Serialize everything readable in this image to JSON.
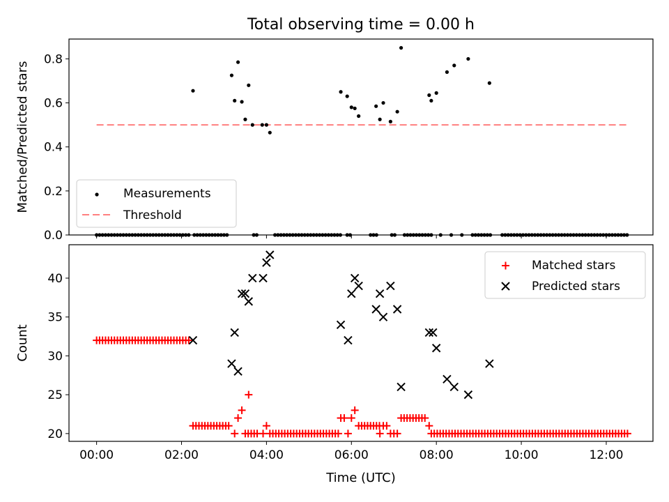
{
  "figure": {
    "title": "Total observing time = 0.00 h",
    "xlabel": "Time (UTC)"
  },
  "chart_data": [
    {
      "type": "scatter",
      "ylabel": "Matched/Predicted stars",
      "xlim": [
        -0.65,
        13.1
      ],
      "ylim": [
        0.0,
        0.89
      ],
      "yticks": [
        0.0,
        0.2,
        0.4,
        0.6,
        0.8
      ],
      "ytick_labels": [
        "0.0",
        "0.2",
        "0.4",
        "0.6",
        "0.8"
      ],
      "xticks": [
        0,
        2,
        4,
        6,
        8,
        10,
        12
      ],
      "legend_position": "lower-left",
      "threshold": {
        "name": "Threshold",
        "value": 0.5,
        "x_range": [
          0.0,
          12.5
        ],
        "color": "#ff7f7f"
      },
      "series": [
        {
          "name": "Measurements",
          "color": "#000000",
          "zero_x_ranges": [
            [
              0.0,
              2.2
            ],
            [
              2.3,
              3.1
            ],
            [
              3.7,
              3.82
            ],
            [
              4.2,
              5.75
            ],
            [
              5.9,
              6.0
            ],
            [
              6.45,
              6.6
            ],
            [
              6.95,
              7.05
            ],
            [
              7.25,
              7.9
            ],
            [
              8.1,
              8.12
            ],
            [
              8.35,
              8.38
            ],
            [
              8.6,
              8.62
            ],
            [
              8.85,
              9.3
            ],
            [
              9.55,
              12.55
            ]
          ],
          "zero_x_step": 0.07,
          "points": [
            [
              2.27,
              0.655
            ],
            [
              3.18,
              0.725
            ],
            [
              3.25,
              0.61
            ],
            [
              3.33,
              0.785
            ],
            [
              3.42,
              0.605
            ],
            [
              3.5,
              0.525
            ],
            [
              3.58,
              0.68
            ],
            [
              3.67,
              0.5
            ],
            [
              3.9,
              0.5
            ],
            [
              4.0,
              0.5
            ],
            [
              4.08,
              0.465
            ],
            [
              5.75,
              0.65
            ],
            [
              5.9,
              0.63
            ],
            [
              6.0,
              0.58
            ],
            [
              6.08,
              0.575
            ],
            [
              6.17,
              0.54
            ],
            [
              6.58,
              0.585
            ],
            [
              6.67,
              0.525
            ],
            [
              6.75,
              0.6
            ],
            [
              6.92,
              0.515
            ],
            [
              7.08,
              0.56
            ],
            [
              7.17,
              0.85
            ],
            [
              7.83,
              0.635
            ],
            [
              7.88,
              0.61
            ],
            [
              8.0,
              0.645
            ],
            [
              8.25,
              0.74
            ],
            [
              8.42,
              0.77
            ],
            [
              8.75,
              0.8
            ],
            [
              9.25,
              0.69
            ]
          ]
        }
      ]
    },
    {
      "type": "scatter",
      "ylabel": "Count",
      "xlim": [
        -0.65,
        13.1
      ],
      "ylim": [
        19.0,
        44.3
      ],
      "yticks": [
        20,
        25,
        30,
        35,
        40
      ],
      "ytick_labels": [
        "20",
        "25",
        "30",
        "35",
        "40"
      ],
      "xticks": [
        0,
        2,
        4,
        6,
        8,
        10,
        12
      ],
      "xtick_labels": [
        "00:00",
        "02:00",
        "04:00",
        "06:00",
        "08:00",
        "10:00",
        "12:00"
      ],
      "legend_position": "top-right",
      "series": [
        {
          "name": "Matched stars",
          "marker": "+",
          "color": "#ff0000",
          "runs": [
            {
              "x_range": [
                0.0,
                2.2
              ],
              "y": 32
            },
            {
              "x_range": [
                2.27,
                3.12
              ],
              "y": 21
            },
            {
              "x_range": [
                3.5,
                3.82
              ],
              "y": 20
            },
            {
              "x_range": [
                4.08,
                5.7
              ],
              "y": 20
            },
            {
              "x_range": [
                6.17,
                6.67
              ],
              "y": 21
            },
            {
              "x_range": [
                7.17,
                7.75
              ],
              "y": 22
            },
            {
              "x_range": [
                7.95,
                12.55
              ],
              "y": 20
            }
          ],
          "run_step": 0.07,
          "points": [
            [
              3.25,
              20
            ],
            [
              3.33,
              22
            ],
            [
              3.42,
              23
            ],
            [
              3.58,
              25
            ],
            [
              4.0,
              21
            ],
            [
              3.92,
              20
            ],
            [
              5.75,
              22
            ],
            [
              5.83,
              22
            ],
            [
              5.92,
              20
            ],
            [
              6.0,
              22
            ],
            [
              6.08,
              23
            ],
            [
              6.67,
              20
            ],
            [
              6.75,
              21
            ],
            [
              6.83,
              21
            ],
            [
              6.92,
              20
            ],
            [
              7.0,
              20
            ],
            [
              7.08,
              20
            ],
            [
              7.83,
              21
            ],
            [
              7.88,
              20
            ]
          ]
        },
        {
          "name": "Predicted stars",
          "marker": "x",
          "color": "#000000",
          "points": [
            [
              2.27,
              32
            ],
            [
              3.18,
              29
            ],
            [
              3.25,
              33
            ],
            [
              3.33,
              28
            ],
            [
              3.42,
              38
            ],
            [
              3.5,
              38
            ],
            [
              3.58,
              37
            ],
            [
              3.67,
              40
            ],
            [
              3.92,
              40
            ],
            [
              4.0,
              42
            ],
            [
              4.08,
              43
            ],
            [
              5.75,
              34
            ],
            [
              5.92,
              32
            ],
            [
              6.0,
              38
            ],
            [
              6.08,
              40
            ],
            [
              6.17,
              39
            ],
            [
              6.58,
              36
            ],
            [
              6.67,
              38
            ],
            [
              6.75,
              35
            ],
            [
              6.92,
              39
            ],
            [
              7.08,
              36
            ],
            [
              7.17,
              26
            ],
            [
              7.83,
              33
            ],
            [
              7.92,
              33
            ],
            [
              8.0,
              31
            ],
            [
              8.25,
              27
            ],
            [
              8.42,
              26
            ],
            [
              8.75,
              25
            ],
            [
              9.25,
              29
            ]
          ]
        }
      ]
    }
  ]
}
